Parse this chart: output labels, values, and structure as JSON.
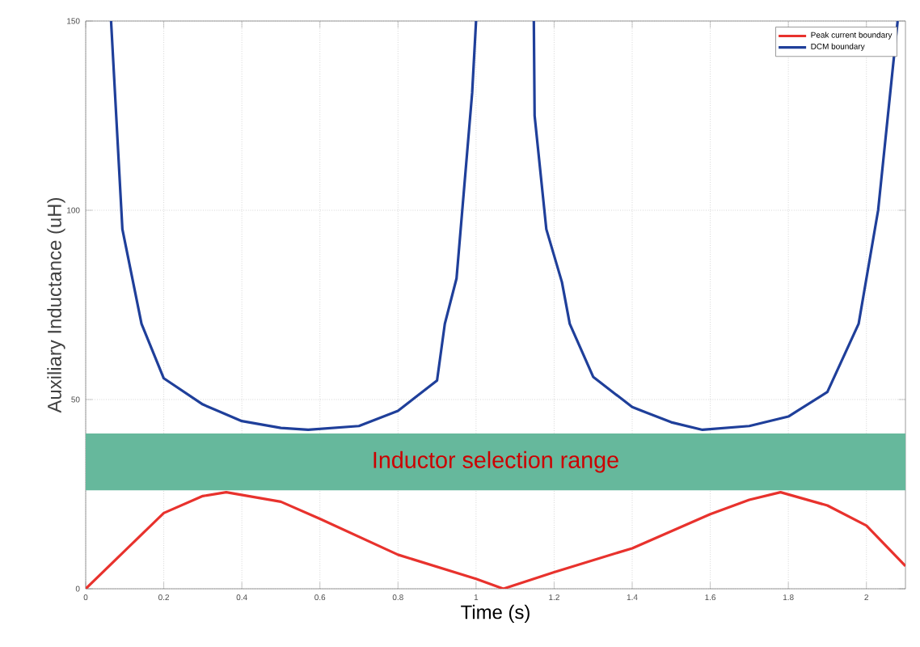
{
  "chart_data": {
    "type": "line",
    "xlabel": "Time (s)",
    "ylabel": "Auxiliary Inductance (uH)",
    "xlim": [
      0,
      2.1
    ],
    "ylim": [
      0,
      150
    ],
    "xticks": [
      0,
      0.2,
      0.4,
      0.6,
      0.8,
      1,
      1.2,
      1.4,
      1.6,
      1.8,
      2
    ],
    "yticks": [
      0,
      50,
      100,
      150
    ],
    "grid": true,
    "legend": "top right",
    "marker": "none",
    "line_style": "solid",
    "bands": [
      {
        "axis": "y",
        "from": 26,
        "to": 41,
        "label": "Inductor selection range",
        "color": "#66b89c"
      }
    ],
    "series": [
      {
        "name": "Peak current boundary",
        "color": "#e8322d",
        "x": [
          0,
          0.1,
          0.2,
          0.3,
          0.36,
          0.5,
          0.6,
          0.8,
          1.0,
          1.07,
          1.2,
          1.4,
          1.6,
          1.7,
          1.78,
          1.9,
          2.0,
          2.1
        ],
        "values": [
          0,
          10,
          20,
          24.5,
          25.5,
          23,
          18.5,
          9,
          2.6,
          0,
          4.4,
          10.7,
          19.7,
          23.5,
          25.5,
          22,
          16.7,
          6
        ]
      },
      {
        "name": "DCM boundary",
        "color": "#1f3f9a",
        "x": [
          0.065,
          0.094,
          0.143,
          0.2,
          0.3,
          0.4,
          0.5,
          0.57,
          0.7,
          0.8,
          0.9,
          0.92,
          0.95,
          0.99,
          1.0,
          1.07,
          1.148,
          1.15,
          1.18,
          1.22,
          1.24,
          1.3,
          1.4,
          1.5,
          1.58,
          1.7,
          1.8,
          1.9,
          1.98,
          2.03,
          2.08
        ],
        "values": [
          150,
          95,
          70,
          55.6,
          48.7,
          44.3,
          42.5,
          42,
          43,
          47,
          55,
          70,
          82,
          131,
          150,
          null,
          150,
          125,
          95,
          81,
          70,
          56,
          48,
          44,
          42,
          43,
          45.5,
          52,
          70,
          100,
          150
        ]
      }
    ]
  }
}
